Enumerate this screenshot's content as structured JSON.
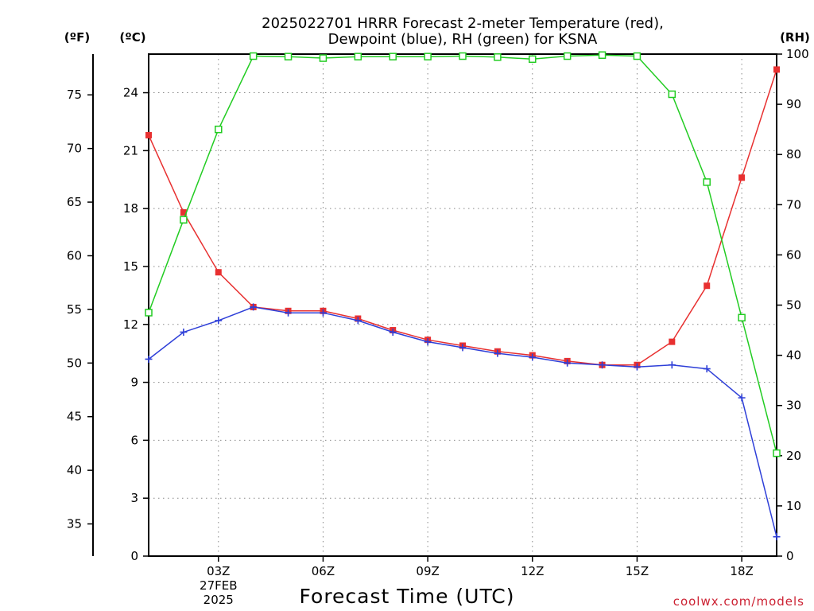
{
  "chart_data": {
    "type": "line",
    "title_lines": [
      "2025022701 HRRR Forecast 2-meter Temperature (red),",
      "Dewpoint (blue), RH (green) for KSNA"
    ],
    "xlabel": "Forecast Time (UTC)",
    "x_hours": [
      1,
      2,
      3,
      4,
      5,
      6,
      7,
      8,
      9,
      10,
      11,
      12,
      13,
      14,
      15,
      16,
      17,
      18,
      19
    ],
    "x_ticks": [
      {
        "hour": 3,
        "lines": [
          "03Z",
          "27FEB",
          "2025"
        ]
      },
      {
        "hour": 6,
        "lines": [
          "06Z"
        ]
      },
      {
        "hour": 9,
        "lines": [
          "09Z"
        ]
      },
      {
        "hour": 12,
        "lines": [
          "12Z"
        ]
      },
      {
        "hour": 15,
        "lines": [
          "15Z"
        ]
      },
      {
        "hour": 18,
        "lines": [
          "18Z"
        ]
      }
    ],
    "xlim": [
      1,
      19
    ],
    "left_axis_f": {
      "unit_label": "(ºF)",
      "ticks": [
        "35",
        "40",
        "45",
        "50",
        "55",
        "60",
        "65",
        "70",
        "75"
      ],
      "tick_values": [
        35,
        40,
        45,
        50,
        55,
        60,
        65,
        70,
        75
      ]
    },
    "left_axis_c": {
      "unit_label": "(ºC)",
      "ticks": [
        "0",
        "3",
        "6",
        "9",
        "12",
        "15",
        "18",
        "21",
        "24"
      ],
      "tick_values": [
        0,
        3,
        6,
        9,
        12,
        15,
        18,
        21,
        24
      ],
      "ylim": [
        0,
        26
      ]
    },
    "right_axis_rh": {
      "unit_label": "(RH)",
      "ticks": [
        "0",
        "10",
        "20",
        "30",
        "40",
        "50",
        "60",
        "70",
        "80",
        "90",
        "100"
      ],
      "tick_values": [
        0,
        10,
        20,
        30,
        40,
        50,
        60,
        70,
        80,
        90,
        100
      ],
      "ylim": [
        0,
        100
      ]
    },
    "grid": true,
    "series": [
      {
        "name": "Temperature",
        "axis": "celsius",
        "color": "#e83030",
        "marker": "filled-square",
        "values": [
          21.8,
          17.8,
          14.7,
          12.9,
          12.7,
          12.7,
          12.3,
          11.7,
          11.2,
          10.9,
          10.6,
          10.4,
          10.1,
          9.9,
          9.9,
          11.1,
          14.0,
          19.6,
          25.2
        ]
      },
      {
        "name": "Dewpoint",
        "axis": "celsius",
        "color": "#2e3fd8",
        "marker": "plus",
        "values": [
          10.2,
          11.6,
          12.2,
          12.9,
          12.6,
          12.6,
          12.2,
          11.6,
          11.1,
          10.8,
          10.5,
          10.3,
          10.0,
          9.9,
          9.8,
          9.9,
          9.7,
          8.2,
          1.0
        ]
      },
      {
        "name": "RH",
        "axis": "rh",
        "color": "#22cc22",
        "marker": "open-square",
        "values": [
          48.5,
          67.0,
          85.0,
          99.6,
          99.5,
          99.2,
          99.5,
          99.5,
          99.5,
          99.6,
          99.4,
          99.0,
          99.6,
          99.8,
          99.6,
          92.0,
          74.5,
          47.5,
          20.5
        ]
      }
    ],
    "credit": "coolwx.com/models"
  }
}
